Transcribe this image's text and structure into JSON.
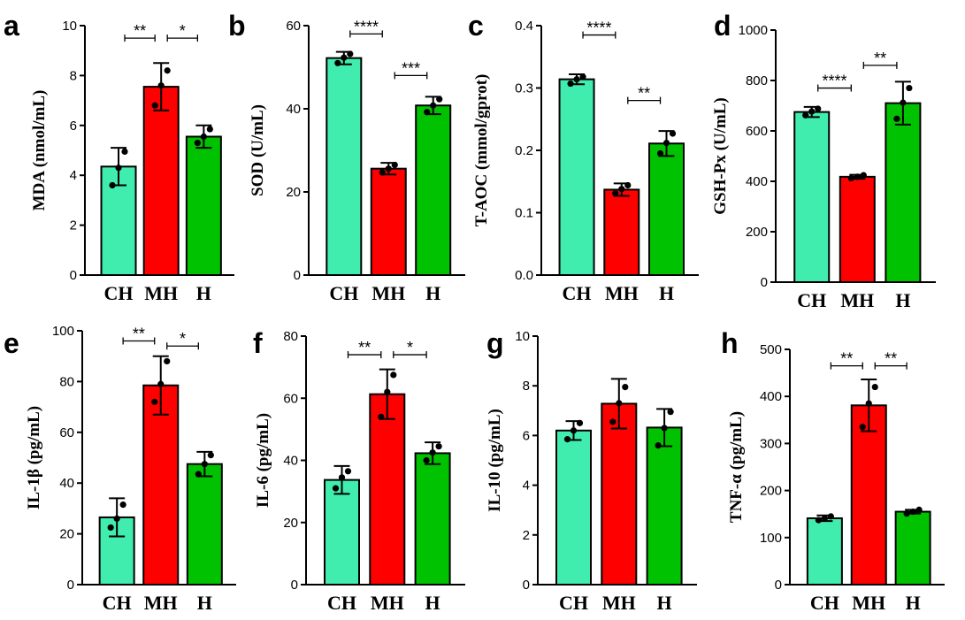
{
  "colors": {
    "CH": "#41EDAE",
    "MH": "#FF0000",
    "H": "#00C200",
    "axis": "#000000"
  },
  "categories": [
    "CH",
    "MH",
    "H"
  ],
  "chart_data": [
    {
      "type": "bar",
      "label": "a",
      "ylabel": "MDA (nmol/mL)",
      "categories": [
        "CH",
        "MH",
        "H"
      ],
      "values": [
        4.35,
        7.55,
        5.55
      ],
      "errors": [
        0.75,
        0.95,
        0.45
      ],
      "points": [
        [
          3.6,
          4.3,
          4.95
        ],
        [
          6.8,
          7.6,
          8.2
        ],
        [
          5.3,
          5.55,
          5.85
        ]
      ],
      "ylim": [
        0,
        10
      ],
      "yticks": [
        0,
        2,
        4,
        6,
        8,
        10
      ],
      "significance": [
        {
          "from": 0,
          "to": 1,
          "text": "**",
          "y": 9.5
        },
        {
          "from": 1,
          "to": 2,
          "text": "*",
          "y": 9.5
        }
      ]
    },
    {
      "type": "bar",
      "label": "b",
      "ylabel": "SOD (U/mL)",
      "categories": [
        "CH",
        "MH",
        "H"
      ],
      "values": [
        52.2,
        25.6,
        40.8
      ],
      "errors": [
        1.5,
        1.4,
        2.1
      ],
      "points": [
        [
          51.0,
          52.3,
          53.2
        ],
        [
          24.7,
          25.6,
          26.5
        ],
        [
          39.2,
          40.8,
          42.3
        ]
      ],
      "ylim": [
        0,
        60
      ],
      "yticks": [
        0,
        20,
        40,
        60
      ],
      "significance": [
        {
          "from": 0,
          "to": 1,
          "text": "****",
          "y": 58
        },
        {
          "from": 1,
          "to": 2,
          "text": "***",
          "y": 48
        }
      ]
    },
    {
      "type": "bar",
      "label": "c",
      "ylabel": "T-AOC (mmol/gprot)",
      "categories": [
        "CH",
        "MH",
        "H"
      ],
      "values": [
        0.314,
        0.137,
        0.211
      ],
      "errors": [
        0.008,
        0.01,
        0.02
      ],
      "points": [
        [
          0.307,
          0.314,
          0.318
        ],
        [
          0.131,
          0.138,
          0.144
        ],
        [
          0.195,
          0.212,
          0.227
        ]
      ],
      "ylim": [
        0,
        0.4
      ],
      "yticks": [
        "0.0",
        "0.1",
        "0.2",
        "0.3",
        "0.4"
      ],
      "significance": [
        {
          "from": 0,
          "to": 1,
          "text": "****",
          "y": 0.385
        },
        {
          "from": 1,
          "to": 2,
          "text": "**",
          "y": 0.28
        }
      ]
    },
    {
      "type": "bar",
      "label": "d",
      "ylabel": "GSH-Px (U/mL)",
      "categories": [
        "CH",
        "MH",
        "H"
      ],
      "values": [
        675,
        418,
        710
      ],
      "errors": [
        20,
        8,
        85
      ],
      "points": [
        [
          662,
          677,
          688
        ],
        [
          412,
          418,
          424
        ],
        [
          648,
          712,
          770
        ]
      ],
      "ylim": [
        0,
        1000
      ],
      "yticks": [
        0,
        200,
        400,
        600,
        800,
        1000
      ],
      "significance": [
        {
          "from": 0,
          "to": 1,
          "text": "****",
          "y": 770
        },
        {
          "from": 1,
          "to": 2,
          "text": "**",
          "y": 860
        }
      ]
    },
    {
      "type": "bar",
      "label": "e",
      "ylabel": "IL-1β (pg/mL)",
      "categories": [
        "CH",
        "MH",
        "H"
      ],
      "values": [
        26.5,
        78.5,
        47.5
      ],
      "errors": [
        7.5,
        11.5,
        4.8
      ],
      "points": [
        [
          22.5,
          26.0,
          31.5
        ],
        [
          72.0,
          79.0,
          88.0
        ],
        [
          43.5,
          47.5,
          51.0
        ]
      ],
      "ylim": [
        0,
        100
      ],
      "yticks": [
        0,
        20,
        40,
        60,
        80,
        100
      ],
      "significance": [
        {
          "from": 0,
          "to": 1,
          "text": "**",
          "y": 96
        },
        {
          "from": 1,
          "to": 2,
          "text": "*",
          "y": 94
        }
      ]
    },
    {
      "type": "bar",
      "label": "f",
      "ylabel": "IL-6 (pg/mL)",
      "categories": [
        "CH",
        "MH",
        "H"
      ],
      "values": [
        33.7,
        61.3,
        42.3
      ],
      "errors": [
        4.5,
        8.0,
        3.5
      ],
      "points": [
        [
          31.0,
          34.5,
          36.5
        ],
        [
          54.0,
          62.0,
          67.5
        ],
        [
          40.0,
          42.5,
          44.5
        ]
      ],
      "ylim": [
        0,
        80
      ],
      "yticks": [
        0,
        20,
        40,
        60,
        80
      ],
      "significance": [
        {
          "from": 0,
          "to": 1,
          "text": "**",
          "y": 74
        },
        {
          "from": 1,
          "to": 2,
          "text": "*",
          "y": 74
        }
      ]
    },
    {
      "type": "bar",
      "label": "g",
      "ylabel": "IL-10 (pg/mL)",
      "categories": [
        "CH",
        "MH",
        "H"
      ],
      "values": [
        6.2,
        7.28,
        6.32
      ],
      "errors": [
        0.38,
        1.0,
        0.75
      ],
      "points": [
        [
          5.85,
          6.2,
          6.5
        ],
        [
          6.55,
          7.3,
          7.95
        ],
        [
          5.6,
          6.3,
          6.95
        ]
      ],
      "ylim": [
        0,
        10
      ],
      "yticks": [
        0,
        2,
        4,
        6,
        8,
        10
      ],
      "significance": []
    },
    {
      "type": "bar",
      "label": "h",
      "ylabel": "TNF-α (pg/mL)",
      "categories": [
        "CH",
        "MH",
        "H"
      ],
      "values": [
        141,
        381,
        155
      ],
      "errors": [
        6,
        55,
        4
      ],
      "points": [
        [
          137,
          141,
          145
        ],
        [
          335,
          385,
          420
        ],
        [
          151,
          155,
          159
        ]
      ],
      "ylim": [
        0,
        500
      ],
      "yticks": [
        0,
        100,
        200,
        300,
        400,
        500
      ],
      "significance": [
        {
          "from": 0,
          "to": 1,
          "text": "**",
          "y": 465
        },
        {
          "from": 1,
          "to": 2,
          "text": "**",
          "y": 465
        }
      ]
    }
  ]
}
